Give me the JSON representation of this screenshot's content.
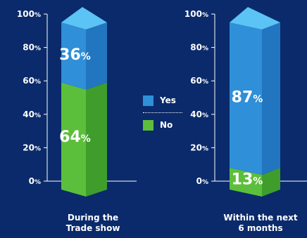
{
  "chart_data": [
    {
      "type": "bar",
      "stacked": true,
      "categories": [
        "During the\nTrade show"
      ],
      "series": [
        {
          "name": "No",
          "values": [
            64
          ]
        },
        {
          "name": "Yes",
          "values": [
            36
          ]
        }
      ],
      "data_labels": [
        "64%",
        "36%"
      ],
      "ylim": [
        0,
        100
      ],
      "yticks": [
        "0%",
        "20%",
        "40%",
        "60%",
        "80%",
        "100%"
      ]
    },
    {
      "type": "bar",
      "stacked": true,
      "categories": [
        "Within the next\n6 months"
      ],
      "series": [
        {
          "name": "No",
          "values": [
            13
          ]
        },
        {
          "name": "Yes",
          "values": [
            87
          ]
        }
      ],
      "data_labels": [
        "13%",
        "87%"
      ],
      "ylim": [
        0,
        100
      ],
      "yticks": [
        "0%",
        "20%",
        "40%",
        "60%",
        "80%",
        "100%"
      ]
    }
  ],
  "legend": {
    "items": [
      {
        "label": "Yes",
        "color": "#2f8fd8"
      },
      {
        "label": "No",
        "color": "#5cbf3b"
      }
    ]
  },
  "colors": {
    "background": "#0a2a6b",
    "yes_front": "#2f8fd8",
    "yes_side": "#2276bf",
    "yes_top": "#5cc3f5",
    "no_front": "#5cbf3b",
    "no_side": "#3f9d2c",
    "axis": "#ffffff"
  },
  "labels": {
    "cat1_line1": "During the",
    "cat1_line2": "Trade show",
    "cat2_line1": "Within the next",
    "cat2_line2": "6 months"
  }
}
